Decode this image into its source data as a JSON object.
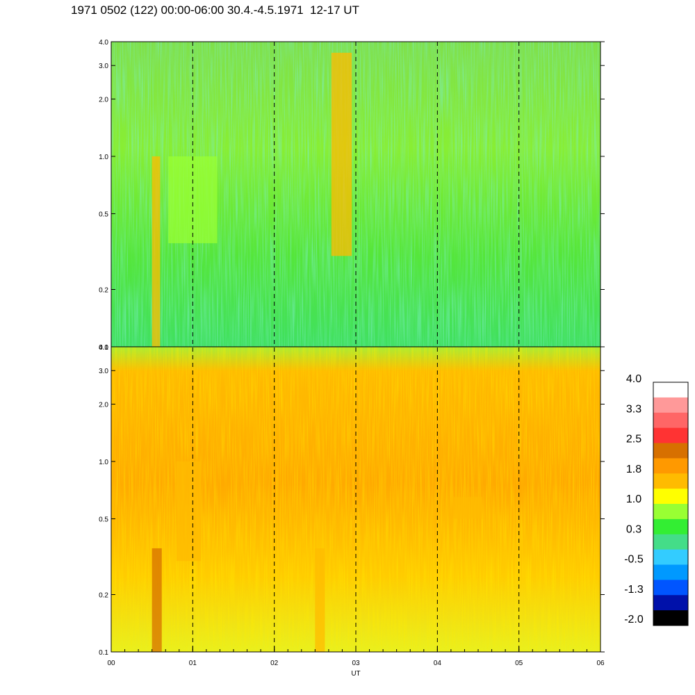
{
  "title": "1971 0502 (122) 00:00-06:00 30.4.-4.5.1971  12-17 UT",
  "chart_data": [
    {
      "type": "heatmap",
      "panel": "upper",
      "xlabel": "",
      "ylabel": "",
      "ylim": [
        0.1,
        4.0
      ],
      "yscale": "log",
      "yticks": [
        "0.1",
        "0.2",
        "0.5",
        "1.0",
        "2.0",
        "3.0",
        "4.0"
      ],
      "yticks_values": [
        0.1,
        0.2,
        0.5,
        1.0,
        2.0,
        3.0,
        4.0
      ],
      "dominant_level": 0.3,
      "bands": [
        {
          "x_start": 0.5,
          "x_end": 0.6,
          "y_start": 0.1,
          "y_end": 1.0,
          "level": 1.8
        },
        {
          "x_start": 0.7,
          "x_end": 1.3,
          "y_start": 0.35,
          "y_end": 1.0,
          "level": 1.0
        },
        {
          "x_start": 2.7,
          "x_end": 2.95,
          "y_start": 0.3,
          "y_end": 3.5,
          "level": 1.8
        }
      ]
    },
    {
      "type": "heatmap",
      "panel": "lower",
      "xlabel": "UT",
      "ylabel": "",
      "ylim": [
        0.1,
        4.0
      ],
      "yscale": "log",
      "yticks": [
        "0.1",
        "0.2",
        "0.5",
        "1.0",
        "2.0",
        "3.0",
        "4.0"
      ],
      "yticks_values": [
        0.1,
        0.2,
        0.5,
        1.0,
        2.0,
        3.0,
        4.0
      ],
      "xlim": [
        0,
        6
      ],
      "xticks": [
        "00",
        "01",
        "02",
        "03",
        "04",
        "05",
        "06"
      ],
      "xticks_values": [
        0,
        1,
        2,
        3,
        4,
        5,
        6
      ],
      "dominant_level": 1.8,
      "bands": [
        {
          "x_start": 0.5,
          "x_end": 0.62,
          "y_start": 0.1,
          "y_end": 0.35,
          "level": 2.5
        },
        {
          "x_start": 0.8,
          "x_end": 1.1,
          "y_start": 0.3,
          "y_end": 1.0,
          "level": 1.8
        },
        {
          "x_start": 2.5,
          "x_end": 2.62,
          "y_start": 0.1,
          "y_end": 0.35,
          "level": 1.8
        },
        {
          "x_start": 4.2,
          "x_end": 4.55,
          "y_start": 0.5,
          "y_end": 0.65,
          "level": 1.8
        }
      ]
    }
  ],
  "dashed_vlines": [
    1,
    2,
    3,
    4,
    5
  ],
  "colorbar": {
    "labels": [
      "4.0",
      "3.3",
      "2.5",
      "1.8",
      "1.0",
      "0.3",
      "-0.5",
      "-1.3",
      "-2.0"
    ],
    "colors": [
      "#ffffff",
      "#ff9999",
      "#ff6666",
      "#ff3333",
      "#d77000",
      "#ff9900",
      "#ffbb00",
      "#ffff00",
      "#99ff33",
      "#33ee33",
      "#44dd88",
      "#33ccff",
      "#0099ff",
      "#0055ff",
      "#0011aa",
      "#000000"
    ]
  }
}
